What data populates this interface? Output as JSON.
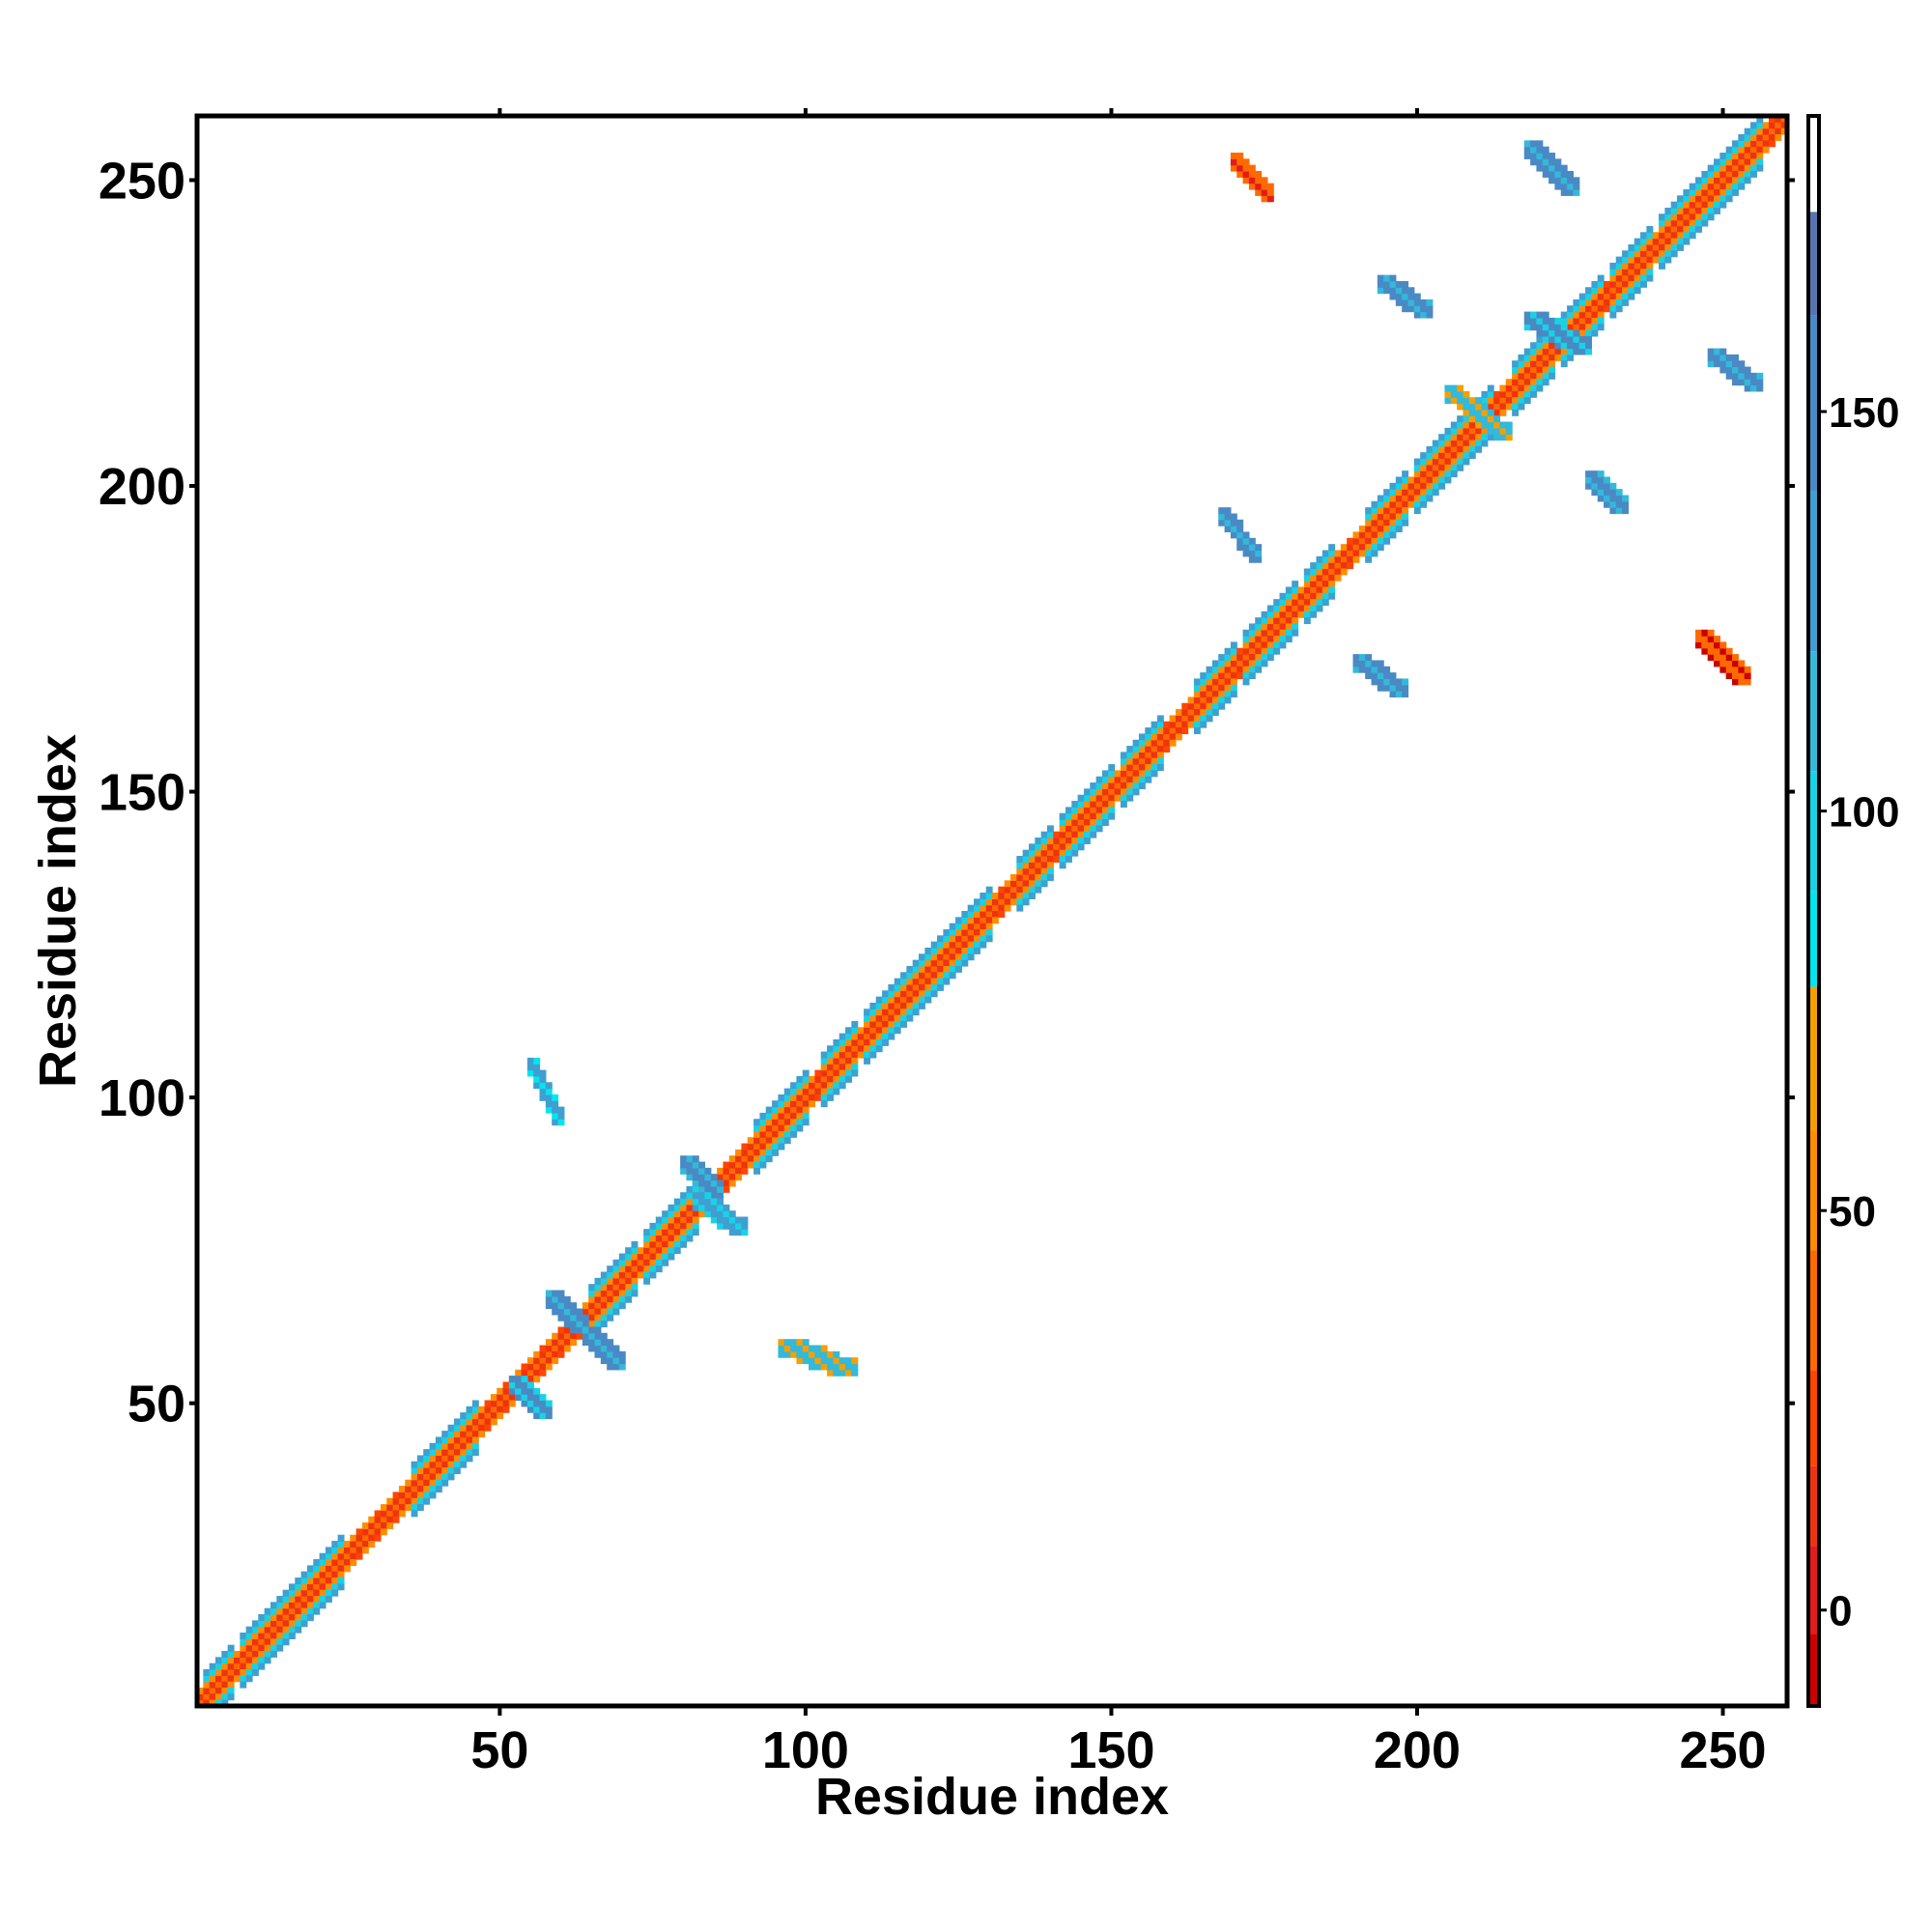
{
  "chart_data": {
    "type": "heatmap",
    "title": "",
    "xlabel": "Residue index",
    "ylabel": "Residue index",
    "xlim": [
      1,
      260
    ],
    "ylim": [
      1,
      260
    ],
    "x_ticks": [
      50,
      100,
      150,
      200,
      250
    ],
    "y_ticks": [
      50,
      100,
      150,
      200,
      250
    ],
    "grid": false,
    "colorbar": {
      "range": [
        -12,
        187
      ],
      "ticks": [
        0,
        50,
        100,
        150
      ],
      "bands": [
        {
          "from": -12,
          "to": -3,
          "color": "#cc0000"
        },
        {
          "from": -3,
          "to": 8,
          "color": "#e41a1c"
        },
        {
          "from": 8,
          "to": 18,
          "color": "#ee3311"
        },
        {
          "from": 18,
          "to": 30,
          "color": "#ff4500"
        },
        {
          "from": 30,
          "to": 45,
          "color": "#ff6a00"
        },
        {
          "from": 45,
          "to": 60,
          "color": "#ff8c00"
        },
        {
          "from": 60,
          "to": 78,
          "color": "#f4a000"
        },
        {
          "from": 78,
          "to": 90,
          "color": "#00e5ee"
        },
        {
          "from": 90,
          "to": 105,
          "color": "#18d2e6"
        },
        {
          "from": 105,
          "to": 120,
          "color": "#33b9da"
        },
        {
          "from": 120,
          "to": 140,
          "color": "#3f9fd0"
        },
        {
          "from": 140,
          "to": 162,
          "color": "#4a8ac4"
        },
        {
          "from": 162,
          "to": 175,
          "color": "#5a74b0"
        },
        {
          "from": 175,
          "to": 187,
          "color": "#ffffff"
        }
      ]
    },
    "diagonal_bands": [
      {
        "offset": 0,
        "value": 40
      },
      {
        "offset": 1,
        "value": 10
      },
      {
        "offset": 2,
        "value": 55
      },
      {
        "offset": 3,
        "value": 95
      },
      {
        "offset": 4,
        "value": 130
      }
    ],
    "helix_segments": [
      [
        2,
        6
      ],
      [
        8,
        24
      ],
      [
        36,
        46
      ],
      [
        65,
        72
      ],
      [
        74,
        82
      ],
      [
        92,
        100
      ],
      [
        103,
        108
      ],
      [
        110,
        130
      ],
      [
        135,
        140
      ],
      [
        142,
        150
      ],
      [
        152,
        158
      ],
      [
        164,
        170
      ],
      [
        172,
        180
      ],
      [
        182,
        186
      ],
      [
        192,
        198
      ],
      [
        200,
        212
      ],
      [
        216,
        222
      ],
      [
        224,
        230
      ],
      [
        232,
        238
      ],
      [
        240,
        256
      ]
    ],
    "off_diagonal_patches": [
      {
        "x": [
          52,
          58
        ],
        "y": [
          48,
          54
        ],
        "value": 140
      },
      {
        "x": [
          58,
          64
        ],
        "y": [
          62,
          68
        ],
        "value": 150
      },
      {
        "x": [
          64,
          70
        ],
        "y": [
          56,
          62
        ],
        "value": 145
      },
      {
        "x": [
          80,
          86
        ],
        "y": [
          84,
          90
        ],
        "value": 150
      },
      {
        "x": [
          82,
          90
        ],
        "y": [
          78,
          84
        ],
        "value": 130
      },
      {
        "x": [
          55,
          60
        ],
        "y": [
          96,
          106
        ],
        "value": 120
      },
      {
        "x": [
          96,
          108
        ],
        "y": [
          55,
          60
        ],
        "value": 110
      },
      {
        "x": [
          170,
          176
        ],
        "y": [
          247,
          254
        ],
        "value": 40
      },
      {
        "x": [
          218,
          226
        ],
        "y": [
          248,
          256
        ],
        "value": 150
      },
      {
        "x": [
          194,
          202
        ],
        "y": [
          228,
          234
        ],
        "value": 145
      },
      {
        "x": [
          168,
          174
        ],
        "y": [
          188,
          196
        ],
        "value": 150
      },
      {
        "x": [
          190,
          198
        ],
        "y": [
          166,
          172
        ],
        "value": 150
      },
      {
        "x": [
          248,
          256
        ],
        "y": [
          216,
          222
        ],
        "value": 150
      },
      {
        "x": [
          228,
          234
        ],
        "y": [
          196,
          202
        ],
        "value": 145
      },
      {
        "x": [
          246,
          254
        ],
        "y": [
          168,
          176
        ],
        "value": 30
      },
      {
        "x": [
          218,
          228
        ],
        "y": [
          222,
          228
        ],
        "value": 140
      },
      {
        "x": [
          205,
          215
        ],
        "y": [
          208,
          216
        ],
        "value": 110
      }
    ]
  }
}
